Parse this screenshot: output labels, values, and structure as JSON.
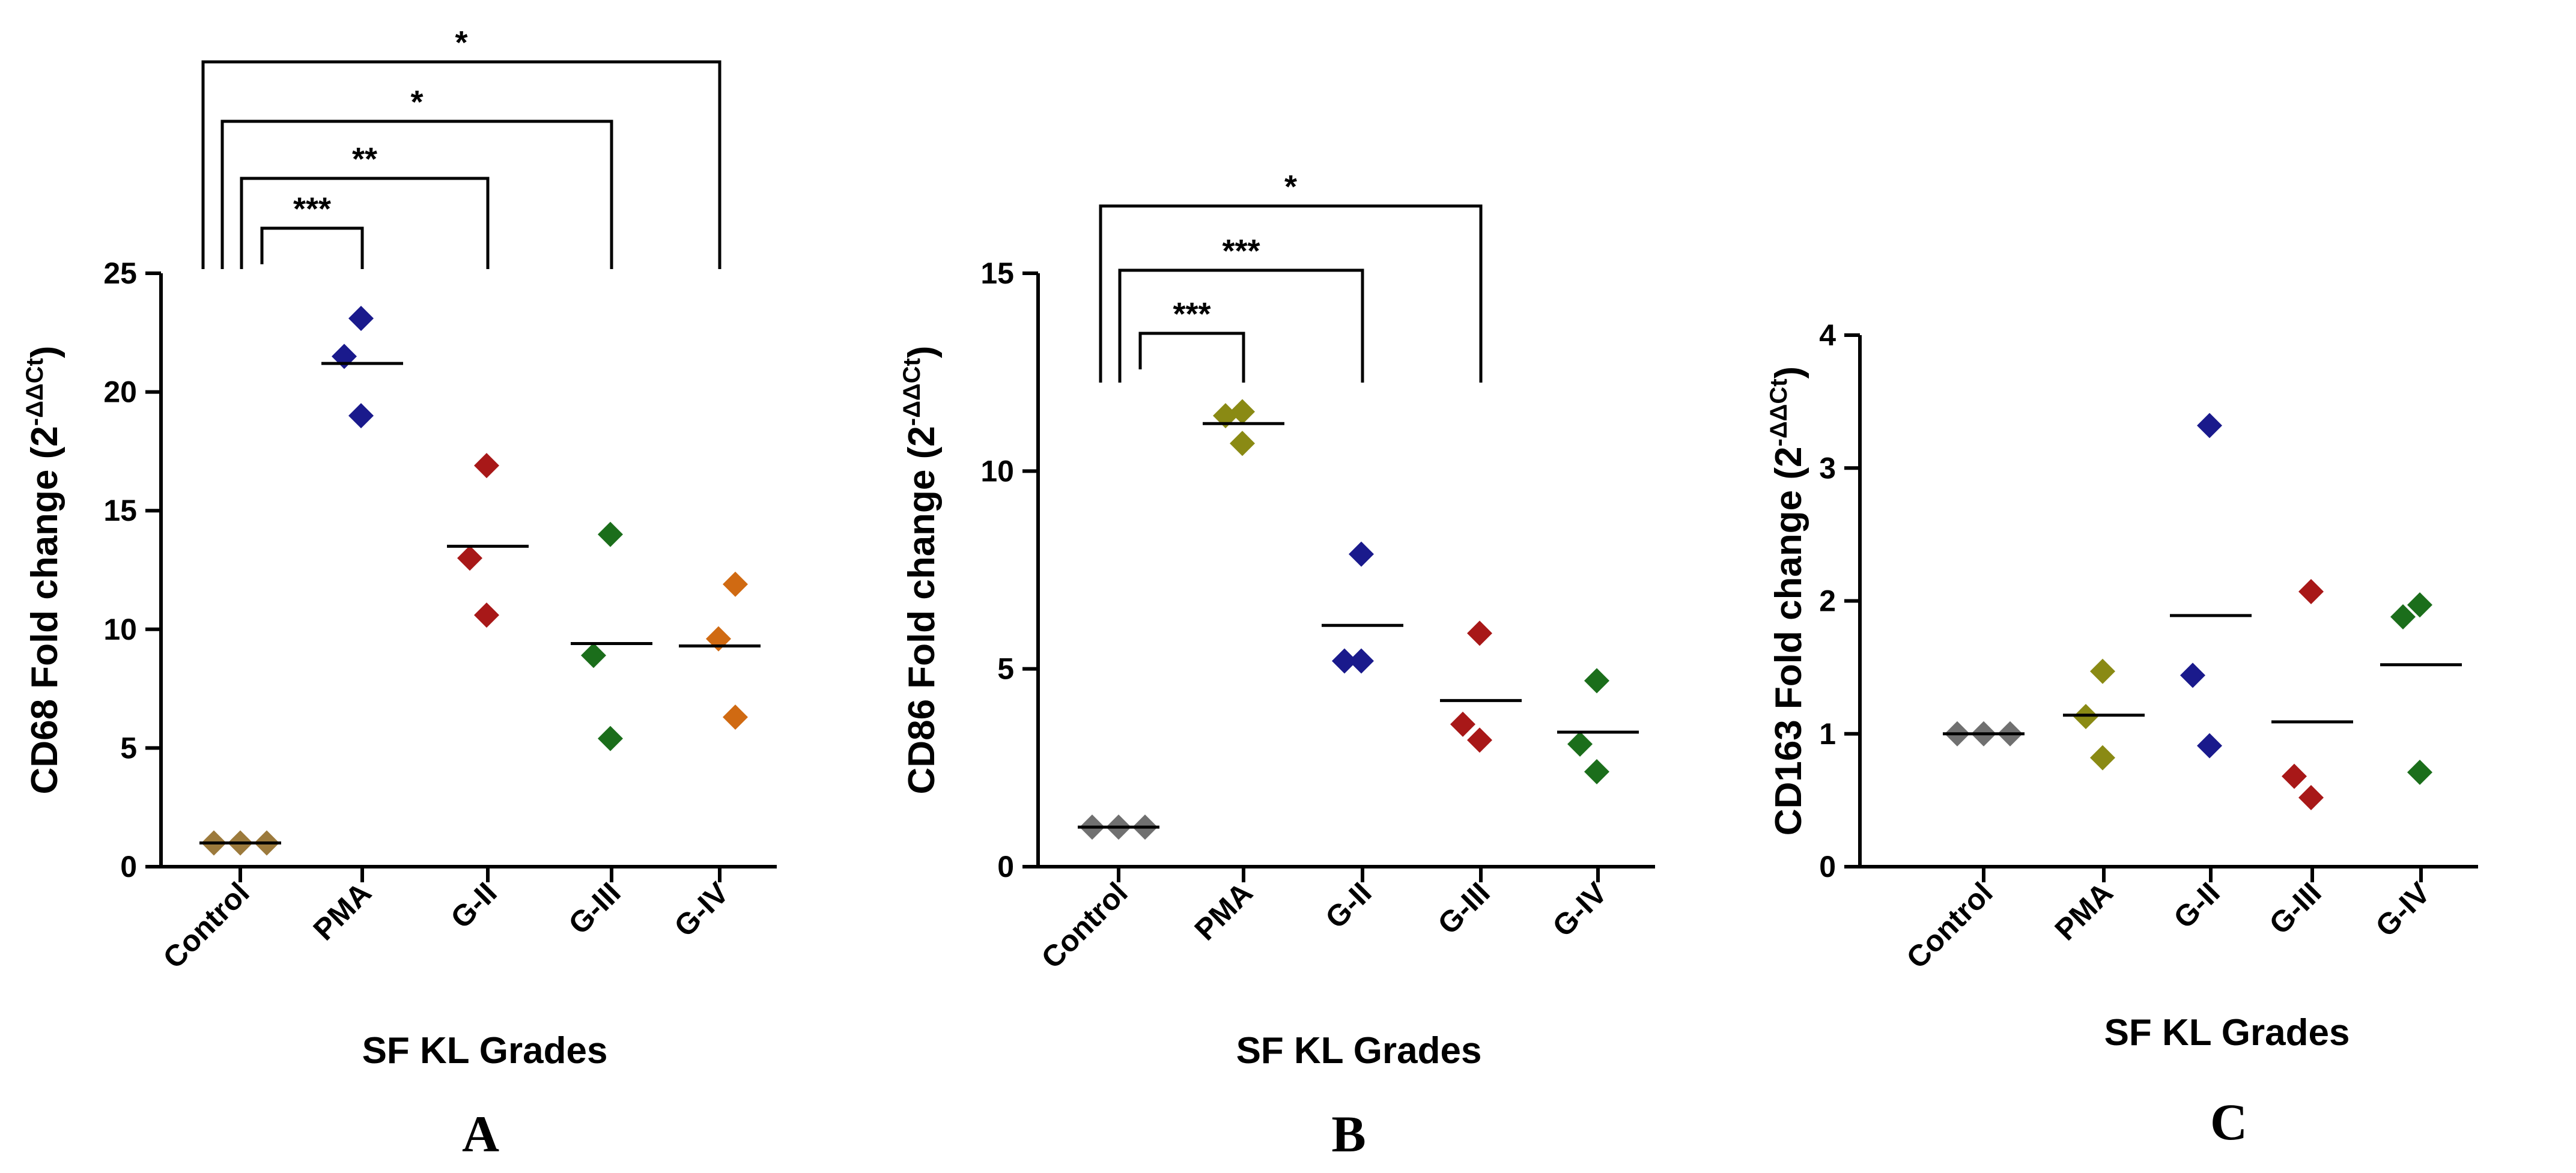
{
  "chart_data": [
    {
      "type": "scatter",
      "panel": "A",
      "ylabel_main": "CD68 Fold change (2",
      "ylabel_sup": "-ΔΔCt",
      "ylabel_close": ")",
      "xlabel": "SF KL Grades",
      "categories": [
        "Control",
        "PMA",
        "G-II",
        "G-III",
        "G-IV"
      ],
      "ylim": [
        0,
        25
      ],
      "yticks": [
        0,
        5,
        10,
        15,
        20,
        25
      ],
      "colors": [
        "#9c7a3c",
        "#1a1a8c",
        "#a81818",
        "#1b6e1b",
        "#d06a12"
      ],
      "series": [
        {
          "name": "Control",
          "values": [
            1.0,
            1.0,
            1.0
          ]
        },
        {
          "name": "PMA",
          "values": [
            19.0,
            21.5,
            23.1
          ]
        },
        {
          "name": "G-II",
          "values": [
            10.6,
            13.0,
            16.9
          ]
        },
        {
          "name": "G-III",
          "values": [
            5.4,
            8.9,
            14.0
          ]
        },
        {
          "name": "G-IV",
          "values": [
            6.3,
            9.6,
            11.9
          ]
        }
      ],
      "means": [
        1.0,
        21.2,
        13.5,
        9.4,
        9.3
      ],
      "significance": [
        {
          "from": "Control",
          "to": "PMA",
          "label": "***"
        },
        {
          "from": "Control",
          "to": "G-II",
          "label": "**"
        },
        {
          "from": "Control",
          "to": "G-III",
          "label": "*"
        },
        {
          "from": "Control",
          "to": "G-IV",
          "label": "*"
        }
      ]
    },
    {
      "type": "scatter",
      "panel": "B",
      "ylabel_main": "CD86 Fold change (2",
      "ylabel_sup": "-ΔΔCt",
      "ylabel_close": ")",
      "xlabel": "SF KL Grades",
      "categories": [
        "Control",
        "PMA",
        "G-II",
        "G-III",
        "G-IV"
      ],
      "ylim": [
        0,
        15
      ],
      "yticks": [
        0,
        5,
        10,
        15
      ],
      "colors": [
        "#707070",
        "#8a8a14",
        "#1a1a8c",
        "#a81818",
        "#1b6e1b"
      ],
      "series": [
        {
          "name": "Control",
          "values": [
            1.0,
            1.0,
            1.0
          ]
        },
        {
          "name": "PMA",
          "values": [
            10.7,
            11.4,
            11.5
          ]
        },
        {
          "name": "G-II",
          "values": [
            5.2,
            5.2,
            7.9
          ]
        },
        {
          "name": "G-III",
          "values": [
            3.2,
            3.6,
            5.9
          ]
        },
        {
          "name": "G-IV",
          "values": [
            2.4,
            3.1,
            4.7
          ]
        }
      ],
      "means": [
        1.0,
        11.2,
        6.1,
        4.2,
        3.4
      ],
      "significance": [
        {
          "from": "Control",
          "to": "PMA",
          "label": "***"
        },
        {
          "from": "Control",
          "to": "G-II",
          "label": "***"
        },
        {
          "from": "Control",
          "to": "G-III",
          "label": "*"
        }
      ]
    },
    {
      "type": "scatter",
      "panel": "C",
      "ylabel_main": "CD163 Fold change (2",
      "ylabel_sup": "-ΔΔCt",
      "ylabel_close": ")",
      "xlabel": "SF KL Grades",
      "categories": [
        "Control",
        "PMA",
        "G-II",
        "G-III",
        "G-IV"
      ],
      "ylim": [
        0,
        4
      ],
      "yticks": [
        0,
        1,
        2,
        3,
        4
      ],
      "colors": [
        "#707070",
        "#8a8a14",
        "#1a1a8c",
        "#a81818",
        "#1b6e1b"
      ],
      "series": [
        {
          "name": "Control",
          "values": [
            1.0,
            1.0,
            1.0
          ]
        },
        {
          "name": "PMA",
          "values": [
            0.82,
            1.13,
            1.47
          ]
        },
        {
          "name": "G-II",
          "values": [
            0.91,
            1.44,
            3.32
          ]
        },
        {
          "name": "G-III",
          "values": [
            0.52,
            0.68,
            2.07
          ]
        },
        {
          "name": "G-IV",
          "values": [
            0.71,
            1.88,
            1.97
          ]
        }
      ],
      "means": [
        1.0,
        1.14,
        1.89,
        1.09,
        1.52
      ],
      "significance": []
    }
  ]
}
